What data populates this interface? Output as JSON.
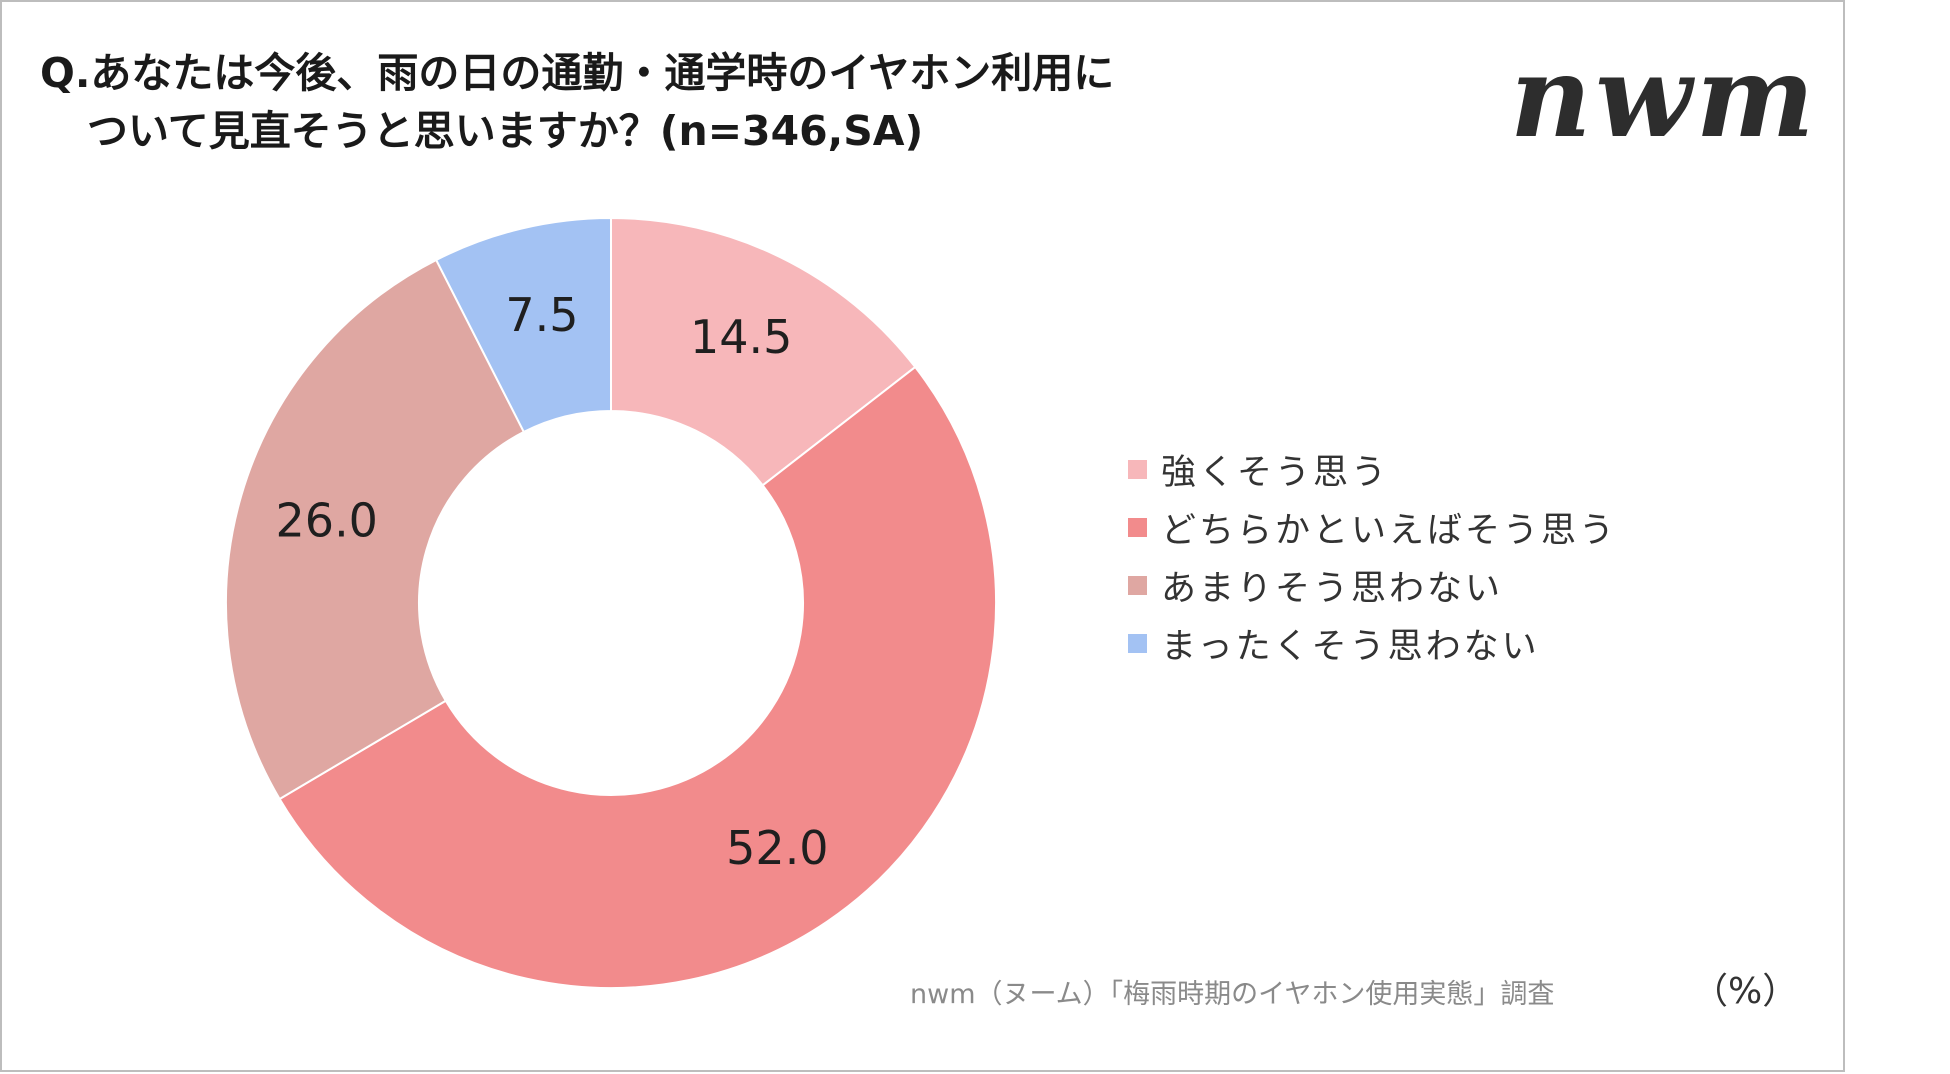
{
  "title": {
    "line1": "Q.あなたは今後、雨の日の通勤・通学時のイヤホン利用に",
    "line2": "ついて見直そうと思いますか？(n=346,SA)"
  },
  "logo": {
    "text": "nwm"
  },
  "chart_data": {
    "type": "pie",
    "donut": true,
    "title": "Q.あなたは今後、雨の日の通勤・通学時のイヤホン利用について見直そうと思いますか？(n=346,SA)",
    "unit": "（%）",
    "legend_position": "right",
    "categories": [
      "強くそう思う",
      "どちらかといえばそう思う",
      "あまりそう思わない",
      "まったくそう思わない"
    ],
    "values": [
      14.5,
      52.0,
      26.0,
      7.5
    ],
    "labels": [
      "14.5",
      "52.0",
      "26.0",
      "7.5"
    ],
    "colors": [
      "#f7b7ba",
      "#f28b8c",
      "#dfa7a2",
      "#a3c2f3"
    ]
  },
  "source": "nwm（ヌーム）「梅雨時期のイヤホン使用実態」調査"
}
